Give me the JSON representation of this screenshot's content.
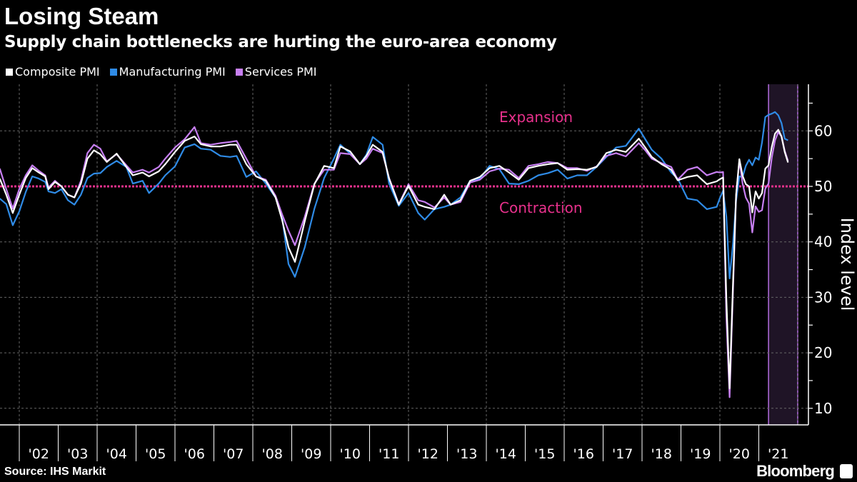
{
  "header": {
    "title": "Losing Steam",
    "subtitle": "Supply chain bottlenecks are hurting the euro-area economy"
  },
  "footer": {
    "source": "Source: IHS Markit",
    "brand": "Bloomberg"
  },
  "colors": {
    "composite": "#ffffff",
    "manufacturing": "#2f8be6",
    "services": "#c77ff2",
    "threshold": "#e8318c",
    "shade": "#1f1426",
    "shade_edge": "#b36ce0"
  },
  "chart_data": {
    "type": "line",
    "title": "Losing Steam",
    "subtitle": "Supply chain bottlenecks are hurting the euro-area economy",
    "ylabel": "Index level",
    "ylim": [
      7,
      68.4
    ],
    "yticks": [
      10,
      20,
      30,
      40,
      50,
      60
    ],
    "y_axis_side": "right",
    "xticks": [
      "'02",
      "'03",
      "'04",
      "'05",
      "'06",
      "'07",
      "'08",
      "'09",
      "'10",
      "'11",
      "'12",
      "'13",
      "'14",
      "'15",
      "'16",
      "'17",
      "'18",
      "'19",
      "'20",
      "'21"
    ],
    "grid": true,
    "legend_placement": "top-left",
    "threshold": {
      "value": 50,
      "above_label": "Expansion",
      "below_label": "Contraction"
    },
    "shaded_period": [
      "2021-04",
      "2022-01"
    ],
    "series_names": [
      "Composite PMI",
      "Manufacturing PMI",
      "Services PMI"
    ],
    "dates": [
      "2001-07",
      "2001-09",
      "2001-11",
      "2002-01",
      "2002-03",
      "2002-05",
      "2002-07",
      "2002-09",
      "2002-10",
      "2002-12",
      "2003-02",
      "2003-04",
      "2003-06",
      "2003-08",
      "2003-10",
      "2003-12",
      "2004-02",
      "2004-04",
      "2004-07",
      "2004-10",
      "2004-12",
      "2005-03",
      "2005-05",
      "2005-08",
      "2005-10",
      "2006-01",
      "2006-04",
      "2006-07",
      "2006-09",
      "2006-12",
      "2007-03",
      "2007-06",
      "2007-08",
      "2007-11",
      "2008-02",
      "2008-05",
      "2008-08",
      "2008-10",
      "2008-12",
      "2009-02",
      "2009-05",
      "2009-08",
      "2009-11",
      "2010-02",
      "2010-04",
      "2010-07",
      "2010-10",
      "2010-12",
      "2011-02",
      "2011-05",
      "2011-07",
      "2011-10",
      "2012-01",
      "2012-04",
      "2012-06",
      "2012-09",
      "2012-12",
      "2013-02",
      "2013-05",
      "2013-08",
      "2013-11",
      "2014-02",
      "2014-05",
      "2014-08",
      "2014-11",
      "2015-02",
      "2015-05",
      "2015-08",
      "2015-11",
      "2016-02",
      "2016-05",
      "2016-08",
      "2016-11",
      "2017-02",
      "2017-05",
      "2017-08",
      "2017-12",
      "2018-02",
      "2018-04",
      "2018-07",
      "2018-10",
      "2018-12",
      "2019-03",
      "2019-06",
      "2019-09",
      "2019-12",
      "2020-01",
      "2020-02",
      "2020-03",
      "2020-04",
      "2020-05",
      "2020-06",
      "2020-07",
      "2020-08",
      "2020-09",
      "2020-10",
      "2020-11",
      "2020-12",
      "2021-01",
      "2021-02",
      "2021-03",
      "2021-04",
      "2021-05",
      "2021-06",
      "2021-07",
      "2021-08",
      "2021-09",
      "2021-10"
    ],
    "series": [
      {
        "name": "Composite PMI",
        "values": [
          51.4,
          48.5,
          45.2,
          48.5,
          51.5,
          53.3,
          52.5,
          51.8,
          49.5,
          50.8,
          50.0,
          48.5,
          48.0,
          50.5,
          55.0,
          56.5,
          55.8,
          54.4,
          55.9,
          53.5,
          52.0,
          52.5,
          51.8,
          52.7,
          54.0,
          56.2,
          58.2,
          59.0,
          57.6,
          57.2,
          57.2,
          57.5,
          57.5,
          54.0,
          51.8,
          51.0,
          48.0,
          44.0,
          39.0,
          36.4,
          43.7,
          50.4,
          53.7,
          53.3,
          57.2,
          56.3,
          54.0,
          55.5,
          57.5,
          56.2,
          51.4,
          46.7,
          50.1,
          46.7,
          46.3,
          45.9,
          48.5,
          46.7,
          47.5,
          51.0,
          51.7,
          53.3,
          53.7,
          52.5,
          51.2,
          53.3,
          53.7,
          54.0,
          54.2,
          53.0,
          53.1,
          53.0,
          53.5,
          56.0,
          56.6,
          56.2,
          58.6,
          57.0,
          55.3,
          54.0,
          53.0,
          51.1,
          51.7,
          52.0,
          50.4,
          50.9,
          51.3,
          51.6,
          29.7,
          13.6,
          31.9,
          48.5,
          54.9,
          51.9,
          50.4,
          50.0,
          45.3,
          49.1,
          47.8,
          48.8,
          53.2,
          53.8,
          57.1,
          59.5,
          60.2,
          59.0,
          56.2,
          54.3
        ]
      },
      {
        "name": "Manufacturing PMI",
        "values": [
          47.8,
          46.8,
          43.0,
          45.5,
          49.0,
          51.8,
          51.4,
          50.8,
          49.1,
          48.8,
          49.5,
          47.5,
          46.7,
          48.5,
          51.5,
          52.3,
          52.4,
          53.5,
          54.6,
          53.5,
          50.5,
          51.0,
          48.8,
          50.5,
          52.0,
          53.6,
          57.0,
          57.6,
          56.8,
          56.6,
          55.5,
          55.3,
          55.5,
          51.7,
          52.7,
          50.5,
          48.0,
          44.6,
          36.0,
          33.7,
          39.0,
          46.0,
          51.5,
          55.0,
          57.5,
          55.9,
          54.0,
          55.7,
          58.9,
          57.5,
          50.5,
          46.5,
          48.8,
          45.2,
          44.0,
          45.9,
          46.3,
          46.7,
          48.0,
          51.0,
          51.4,
          53.7,
          53.1,
          50.5,
          50.4,
          51.0,
          52.0,
          52.4,
          53.0,
          51.4,
          52.0,
          52.0,
          53.5,
          55.3,
          57.0,
          57.3,
          60.4,
          58.5,
          56.6,
          55.0,
          52.5,
          51.4,
          47.8,
          47.5,
          45.9,
          46.3,
          47.9,
          49.2,
          44.5,
          33.4,
          39.4,
          47.4,
          51.8,
          51.7,
          53.7,
          54.8,
          53.8,
          55.2,
          54.8,
          57.9,
          62.5,
          62.9,
          63.1,
          63.4,
          62.8,
          61.4,
          58.6,
          58.3
        ]
      },
      {
        "name": "Services PMI",
        "values": [
          53.2,
          49.5,
          46.0,
          49.5,
          52.0,
          53.8,
          52.8,
          52.0,
          49.8,
          51.0,
          50.0,
          48.5,
          48.0,
          51.0,
          56.0,
          57.5,
          56.8,
          54.5,
          55.8,
          53.8,
          52.5,
          53.0,
          52.5,
          53.5,
          55.0,
          57.0,
          58.5,
          60.7,
          57.8,
          57.5,
          57.8,
          58.0,
          58.2,
          55.0,
          51.8,
          51.2,
          48.3,
          45.0,
          42.0,
          39.4,
          44.5,
          50.5,
          53.0,
          53.0,
          56.0,
          55.8,
          54.0,
          55.0,
          56.8,
          56.0,
          51.5,
          46.8,
          50.4,
          47.5,
          47.2,
          46.2,
          48.0,
          46.7,
          47.2,
          50.7,
          51.2,
          52.7,
          53.2,
          53.0,
          51.5,
          53.7,
          54.0,
          54.4,
          54.2,
          53.3,
          53.3,
          52.8,
          53.6,
          55.5,
          56.0,
          55.4,
          57.8,
          56.5,
          55.0,
          54.2,
          53.5,
          51.2,
          53.0,
          53.5,
          52.0,
          52.6,
          52.5,
          52.6,
          26.4,
          12.0,
          30.5,
          48.3,
          54.7,
          50.5,
          48.0,
          46.9,
          41.7,
          46.4,
          45.4,
          45.7,
          49.6,
          50.5,
          55.2,
          58.3,
          59.8,
          59.0,
          56.4,
          54.6
        ]
      }
    ]
  }
}
